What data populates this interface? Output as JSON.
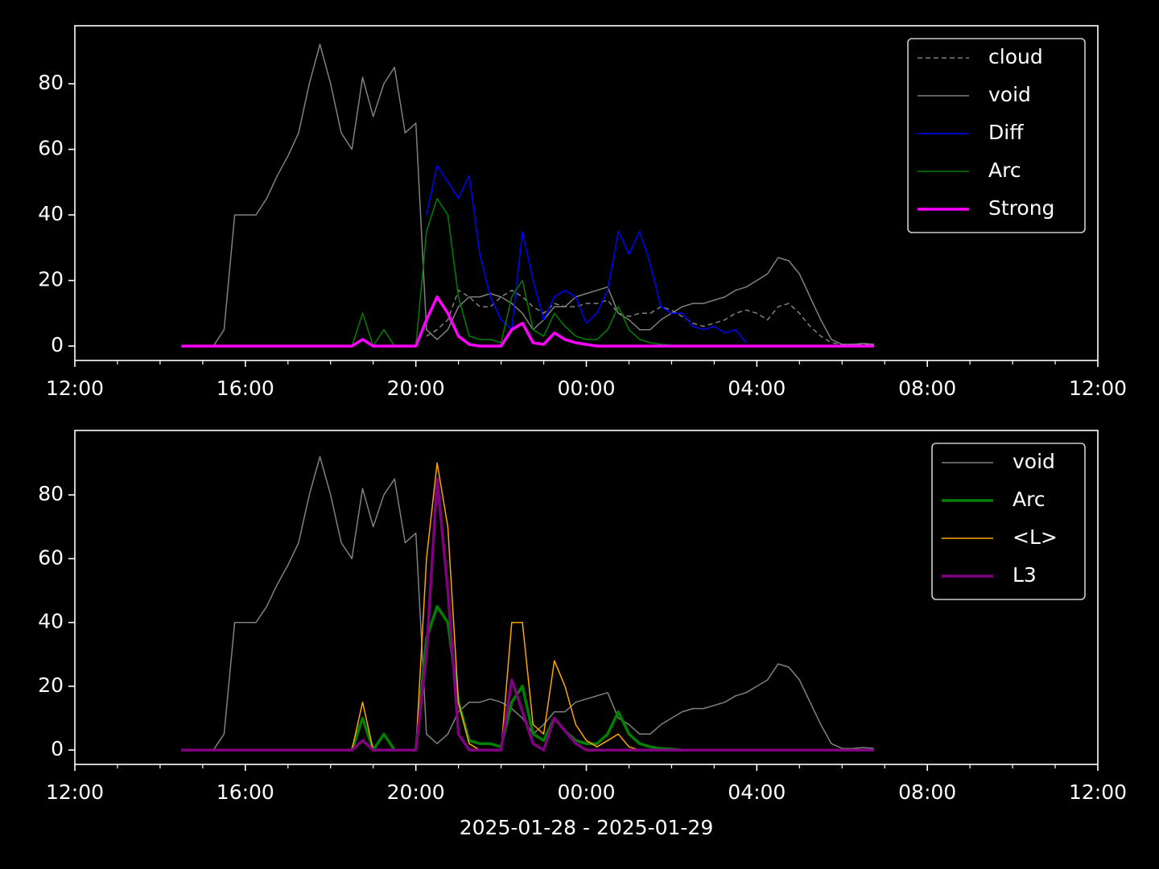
{
  "chart_data": [
    {
      "type": "line",
      "legend": "upper right",
      "x": [
        "2025-01-28T14:30",
        "2025-01-28T14:45",
        "2025-01-28T15:00",
        "2025-01-28T15:15",
        "2025-01-28T15:30",
        "2025-01-28T15:45",
        "2025-01-28T16:00",
        "2025-01-28T16:15",
        "2025-01-28T16:30",
        "2025-01-28T16:45",
        "2025-01-28T17:00",
        "2025-01-28T17:15",
        "2025-01-28T17:30",
        "2025-01-28T17:45",
        "2025-01-28T18:00",
        "2025-01-28T18:15",
        "2025-01-28T18:30",
        "2025-01-28T18:45",
        "2025-01-28T19:00",
        "2025-01-28T19:15",
        "2025-01-28T19:30",
        "2025-01-28T19:45",
        "2025-01-28T20:00",
        "2025-01-28T20:15",
        "2025-01-28T20:30",
        "2025-01-28T20:45",
        "2025-01-28T21:00",
        "2025-01-28T21:15",
        "2025-01-28T21:30",
        "2025-01-28T21:45",
        "2025-01-28T22:00",
        "2025-01-28T22:15",
        "2025-01-28T22:30",
        "2025-01-28T22:45",
        "2025-01-28T23:00",
        "2025-01-28T23:15",
        "2025-01-28T23:30",
        "2025-01-28T23:45",
        "2025-01-29T00:00",
        "2025-01-29T00:15",
        "2025-01-29T00:30",
        "2025-01-29T00:45",
        "2025-01-29T01:00",
        "2025-01-29T01:15",
        "2025-01-29T01:30",
        "2025-01-29T01:45",
        "2025-01-29T02:00",
        "2025-01-29T02:15",
        "2025-01-29T02:30",
        "2025-01-29T02:45",
        "2025-01-29T03:00",
        "2025-01-29T03:15",
        "2025-01-29T03:30",
        "2025-01-29T03:45",
        "2025-01-29T04:00",
        "2025-01-29T04:15",
        "2025-01-29T04:30",
        "2025-01-29T04:45",
        "2025-01-29T05:00",
        "2025-01-29T05:15",
        "2025-01-29T05:30",
        "2025-01-29T05:45",
        "2025-01-29T06:00",
        "2025-01-29T06:15",
        "2025-01-29T06:30",
        "2025-01-29T06:45"
      ],
      "xlim": [
        "2025-01-28T12:00",
        "2025-01-29T12:00"
      ],
      "xticks": [
        {
          "value": "2025-01-28T12:00",
          "label": "12:00"
        },
        {
          "value": "2025-01-28T16:00",
          "label": "16:00"
        },
        {
          "value": "2025-01-28T20:00",
          "label": "20:00"
        },
        {
          "value": "2025-01-29T00:00",
          "label": "00:00"
        },
        {
          "value": "2025-01-29T04:00",
          "label": "04:00"
        },
        {
          "value": "2025-01-29T08:00",
          "label": "08:00"
        },
        {
          "value": "2025-01-29T12:00",
          "label": "12:00"
        }
      ],
      "ylim": [
        -4.4,
        97.7
      ],
      "yticks": [
        0,
        20,
        40,
        60,
        80
      ],
      "series": [
        {
          "name": "cloud",
          "color": "#808080",
          "dashed": true,
          "width": 1.5,
          "values": [
            null,
            null,
            null,
            null,
            null,
            null,
            null,
            null,
            null,
            null,
            null,
            null,
            null,
            null,
            null,
            null,
            null,
            null,
            null,
            null,
            null,
            null,
            null,
            3,
            5,
            8,
            17,
            15,
            12,
            12,
            15,
            17,
            15,
            12,
            10,
            13,
            12,
            12,
            13,
            13,
            14,
            10,
            9,
            10,
            10,
            12,
            11,
            9,
            7,
            6,
            7,
            8,
            10,
            11,
            10,
            8,
            12,
            13,
            10,
            6,
            3,
            1,
            0.5,
            0.5,
            0.5,
            0.5
          ]
        },
        {
          "name": "void",
          "color": "#808080",
          "width": 1.5,
          "values": [
            0,
            0,
            0,
            0,
            5,
            40,
            40,
            40,
            45,
            52,
            58,
            65,
            80,
            92,
            80,
            65,
            60,
            82,
            70,
            80,
            85,
            65,
            68,
            5,
            2,
            5,
            12,
            15,
            15,
            16,
            15,
            13,
            10,
            5,
            8,
            12,
            12,
            15,
            16,
            17,
            18,
            10,
            8,
            5,
            5,
            8,
            10,
            12,
            13,
            13,
            14,
            15,
            17,
            18,
            20,
            22,
            27,
            26,
            22,
            15,
            8,
            2,
            0.5,
            0.5,
            0.8,
            0.5
          ]
        },
        {
          "name": "Diff",
          "color": "#0000ff",
          "width": 1.5,
          "values": [
            null,
            null,
            null,
            null,
            null,
            null,
            null,
            null,
            null,
            null,
            null,
            null,
            null,
            null,
            null,
            null,
            null,
            null,
            null,
            null,
            null,
            null,
            null,
            40,
            55,
            50,
            45,
            52,
            28,
            15,
            8,
            5,
            35,
            20,
            8,
            15,
            17,
            15,
            7,
            10,
            17,
            35,
            28,
            35,
            25,
            12,
            10,
            10,
            6,
            5,
            6,
            4,
            5,
            1,
            null,
            null,
            null,
            null,
            null,
            null,
            null,
            null,
            null,
            null,
            null,
            null
          ]
        },
        {
          "name": "Arc",
          "color": "#008000",
          "width": 1.5,
          "values": [
            0,
            0,
            0,
            0,
            0,
            0,
            0,
            0,
            0,
            0,
            0,
            0,
            0,
            0,
            0,
            0,
            0,
            10,
            0,
            5,
            0,
            0,
            0,
            35,
            45,
            40,
            15,
            3,
            2,
            2,
            1,
            15,
            20,
            5,
            3,
            10,
            6,
            3,
            2,
            2,
            5,
            12,
            5,
            2,
            1,
            0.5,
            0.3,
            0,
            0,
            0,
            0,
            0,
            0,
            0,
            0,
            0,
            0,
            0,
            0,
            0,
            0,
            0,
            0,
            0,
            0,
            0
          ]
        },
        {
          "name": "Strong",
          "color": "#ff00ff",
          "width": 3.5,
          "values": [
            0,
            0,
            0,
            0,
            0,
            0,
            0,
            0,
            0,
            0,
            0,
            0,
            0,
            0,
            0,
            0,
            0,
            2,
            0,
            0,
            0,
            0,
            0,
            8,
            15,
            10,
            3,
            0.5,
            0,
            0,
            0,
            5,
            7,
            1,
            0.5,
            4,
            2,
            1,
            0.5,
            0,
            0,
            0,
            0,
            0,
            0,
            0,
            0,
            0,
            0,
            0,
            0,
            0,
            0,
            0,
            0,
            0,
            0,
            0,
            0,
            0,
            0,
            0,
            0,
            0,
            0,
            0
          ]
        }
      ]
    },
    {
      "type": "line",
      "legend": "upper right",
      "xlabel": "2025-01-28 - 2025-01-29",
      "x": [
        "2025-01-28T14:30",
        "2025-01-28T14:45",
        "2025-01-28T15:00",
        "2025-01-28T15:15",
        "2025-01-28T15:30",
        "2025-01-28T15:45",
        "2025-01-28T16:00",
        "2025-01-28T16:15",
        "2025-01-28T16:30",
        "2025-01-28T16:45",
        "2025-01-28T17:00",
        "2025-01-28T17:15",
        "2025-01-28T17:30",
        "2025-01-28T17:45",
        "2025-01-28T18:00",
        "2025-01-28T18:15",
        "2025-01-28T18:30",
        "2025-01-28T18:45",
        "2025-01-28T19:00",
        "2025-01-28T19:15",
        "2025-01-28T19:30",
        "2025-01-28T19:45",
        "2025-01-28T20:00",
        "2025-01-28T20:15",
        "2025-01-28T20:30",
        "2025-01-28T20:45",
        "2025-01-28T21:00",
        "2025-01-28T21:15",
        "2025-01-28T21:30",
        "2025-01-28T21:45",
        "2025-01-28T22:00",
        "2025-01-28T22:15",
        "2025-01-28T22:30",
        "2025-01-28T22:45",
        "2025-01-28T23:00",
        "2025-01-28T23:15",
        "2025-01-28T23:30",
        "2025-01-28T23:45",
        "2025-01-29T00:00",
        "2025-01-29T00:15",
        "2025-01-29T00:30",
        "2025-01-29T00:45",
        "2025-01-29T01:00",
        "2025-01-29T01:15",
        "2025-01-29T01:30",
        "2025-01-29T01:45",
        "2025-01-29T02:00",
        "2025-01-29T02:15",
        "2025-01-29T02:30",
        "2025-01-29T02:45",
        "2025-01-29T03:00",
        "2025-01-29T03:15",
        "2025-01-29T03:30",
        "2025-01-29T03:45",
        "2025-01-29T04:00",
        "2025-01-29T04:15",
        "2025-01-29T04:30",
        "2025-01-29T04:45",
        "2025-01-29T05:00",
        "2025-01-29T05:15",
        "2025-01-29T05:30",
        "2025-01-29T05:45",
        "2025-01-29T06:00",
        "2025-01-29T06:15",
        "2025-01-29T06:30",
        "2025-01-29T06:45"
      ],
      "xlim": [
        "2025-01-28T12:00",
        "2025-01-29T12:00"
      ],
      "xticks": [
        {
          "value": "2025-01-28T12:00",
          "label": "12:00"
        },
        {
          "value": "2025-01-28T16:00",
          "label": "16:00"
        },
        {
          "value": "2025-01-28T20:00",
          "label": "20:00"
        },
        {
          "value": "2025-01-29T00:00",
          "label": "00:00"
        },
        {
          "value": "2025-01-29T04:00",
          "label": "04:00"
        },
        {
          "value": "2025-01-29T08:00",
          "label": "08:00"
        },
        {
          "value": "2025-01-29T12:00",
          "label": "12:00"
        }
      ],
      "ylim": [
        -4.5,
        100.2
      ],
      "yticks": [
        0,
        20,
        40,
        60,
        80
      ],
      "series": [
        {
          "name": "void",
          "color": "#808080",
          "width": 1.5,
          "values": [
            0,
            0,
            0,
            0,
            5,
            40,
            40,
            40,
            45,
            52,
            58,
            65,
            80,
            92,
            80,
            65,
            60,
            82,
            70,
            80,
            85,
            65,
            68,
            5,
            2,
            5,
            12,
            15,
            15,
            16,
            15,
            13,
            10,
            5,
            8,
            12,
            12,
            15,
            16,
            17,
            18,
            10,
            8,
            5,
            5,
            8,
            10,
            12,
            13,
            13,
            14,
            15,
            17,
            18,
            20,
            22,
            27,
            26,
            22,
            15,
            8,
            2,
            0.5,
            0.5,
            0.8,
            0.5
          ]
        },
        {
          "name": "Arc",
          "color": "#008000",
          "width": 3.5,
          "values": [
            0,
            0,
            0,
            0,
            0,
            0,
            0,
            0,
            0,
            0,
            0,
            0,
            0,
            0,
            0,
            0,
            0,
            10,
            0,
            5,
            0,
            0,
            0,
            35,
            45,
            40,
            15,
            3,
            2,
            2,
            1,
            15,
            20,
            5,
            3,
            10,
            6,
            3,
            2,
            2,
            5,
            12,
            5,
            2,
            1,
            0.5,
            0.3,
            0,
            0,
            0,
            0,
            0,
            0,
            0,
            0,
            0,
            0,
            0,
            0,
            0,
            0,
            0,
            0,
            0,
            0,
            0
          ]
        },
        {
          "name": "<L>",
          "color": "#ffa500",
          "width": 1.5,
          "values": [
            0,
            0,
            0,
            0,
            0,
            0,
            0,
            0,
            0,
            0,
            0,
            0,
            0,
            0,
            0,
            0,
            0,
            15,
            0,
            0,
            0,
            0,
            0,
            60,
            90,
            70,
            15,
            2,
            0,
            0,
            0,
            40,
            40,
            8,
            5,
            28,
            20,
            8,
            3,
            1,
            3,
            5,
            1,
            0,
            0,
            0,
            0,
            0,
            0,
            0,
            0,
            0,
            0,
            0,
            0,
            0,
            0,
            0,
            0,
            0,
            0,
            0,
            0,
            0,
            0,
            0
          ]
        },
        {
          "name": "L3",
          "color": "#800080",
          "width": 3.5,
          "values": [
            0,
            0,
            0,
            0,
            0,
            0,
            0,
            0,
            0,
            0,
            0,
            0,
            0,
            0,
            0,
            0,
            0,
            3,
            0,
            0,
            0,
            0,
            0,
            30,
            85,
            50,
            5,
            0,
            0,
            0,
            0,
            22,
            12,
            2,
            0,
            10,
            6,
            2,
            0,
            0,
            0,
            0,
            0,
            0,
            0,
            0,
            0,
            0,
            0,
            0,
            0,
            0,
            0,
            0,
            0,
            0,
            0,
            0,
            0,
            0,
            0,
            0,
            0,
            0,
            0,
            0
          ]
        }
      ]
    }
  ]
}
